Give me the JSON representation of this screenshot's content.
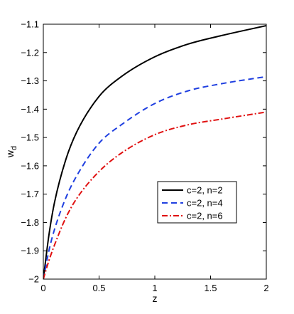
{
  "chart_data": {
    "type": "line",
    "title": "",
    "xlabel": "z",
    "ylabel_main": "w",
    "ylabel_sub": "d",
    "xlim": [
      0,
      2
    ],
    "ylim": [
      -2,
      -1.1
    ],
    "xticks": [
      0,
      0.5,
      1,
      1.5,
      2
    ],
    "xtick_labels": [
      "0",
      "0.5",
      "1",
      "1.5",
      "2"
    ],
    "yticks": [
      -2,
      -1.9,
      -1.8,
      -1.7,
      -1.6,
      -1.5,
      -1.4,
      -1.3,
      -1.2,
      -1.1
    ],
    "ytick_labels": [
      "−2",
      "−1.9",
      "−1.8",
      "−1.7",
      "−1.6",
      "−1.5",
      "−1.4",
      "−1.3",
      "−1.2",
      "−1.1"
    ],
    "grid": false,
    "legend_position": "lower-right",
    "x": [
      0,
      0.05,
      0.1,
      0.2,
      0.3,
      0.5,
      0.7,
      1.0,
      1.3,
      1.6,
      2.0
    ],
    "series": [
      {
        "name": "c=2, n=2",
        "color": "#000000",
        "dash": "solid",
        "values": [
          -2.0,
          -1.845,
          -1.73,
          -1.58,
          -1.48,
          -1.355,
          -1.285,
          -1.215,
          -1.17,
          -1.14,
          -1.105
        ]
      },
      {
        "name": "c=2, n=4",
        "color": "#1f3fe0",
        "dash": "dashed",
        "values": [
          -2.0,
          -1.9,
          -1.825,
          -1.715,
          -1.635,
          -1.52,
          -1.455,
          -1.38,
          -1.335,
          -1.31,
          -1.285
        ]
      },
      {
        "name": "c=2, n=6",
        "color": "#e01010",
        "dash": "dashdot",
        "values": [
          -2.0,
          -1.935,
          -1.88,
          -1.785,
          -1.715,
          -1.62,
          -1.555,
          -1.49,
          -1.455,
          -1.435,
          -1.41
        ]
      }
    ]
  }
}
